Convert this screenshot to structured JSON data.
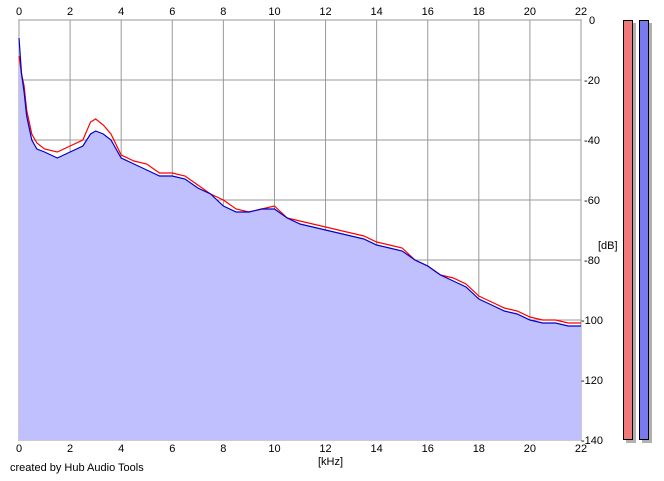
{
  "chart_data": {
    "type": "area",
    "title": "",
    "xlabel": "[kHz]",
    "ylabel": "[dB]",
    "xlim": [
      0,
      22
    ],
    "ylim": [
      -140,
      0
    ],
    "x_ticks": [
      0,
      2,
      4,
      6,
      8,
      10,
      12,
      14,
      16,
      18,
      20,
      22
    ],
    "y_ticks": [
      0,
      -20,
      -40,
      -60,
      -80,
      -100,
      -120,
      -140
    ],
    "y_tick_labels": [
      "0",
      "-20",
      "-40",
      "-60",
      "-80",
      "-100",
      "-120",
      "-140"
    ],
    "grid": true,
    "legend": "none",
    "series": [
      {
        "color": "#ff0000",
        "x": [
          0,
          0.1,
          0.2,
          0.3,
          0.5,
          0.7,
          1.0,
          1.5,
          2.0,
          2.5,
          2.8,
          3.0,
          3.3,
          3.6,
          4.0,
          4.5,
          5.0,
          5.5,
          6.0,
          6.5,
          7.0,
          7.5,
          8.0,
          8.5,
          9.0,
          9.5,
          10.0,
          10.5,
          11.0,
          11.5,
          12.0,
          12.5,
          13.0,
          13.5,
          14.0,
          14.5,
          15.0,
          15.5,
          16.0,
          16.5,
          17.0,
          17.5,
          18.0,
          18.5,
          19.0,
          19.5,
          20.0,
          20.5,
          21.0,
          21.5,
          22.0
        ],
        "y": [
          -12,
          -18,
          -22,
          -30,
          -38,
          -41,
          -43,
          -44,
          -42,
          -40,
          -34,
          -33,
          -35,
          -38,
          -45,
          -47,
          -48,
          -51,
          -51,
          -52,
          -55,
          -58,
          -60,
          -63,
          -64,
          -63,
          -62,
          -66,
          -67,
          -68,
          -69,
          -70,
          -71,
          -72,
          -74,
          -75,
          -76,
          -80,
          -82,
          -85,
          -86,
          -88,
          -92,
          -94,
          -96,
          -97,
          -99,
          -100,
          -100,
          -101,
          -101
        ]
      },
      {
        "color": "#0000cc",
        "x": [
          0,
          0.1,
          0.2,
          0.3,
          0.5,
          0.7,
          1.0,
          1.5,
          2.0,
          2.5,
          2.8,
          3.0,
          3.3,
          3.6,
          4.0,
          4.5,
          5.0,
          5.5,
          6.0,
          6.5,
          7.0,
          7.5,
          8.0,
          8.5,
          9.0,
          9.5,
          10.0,
          10.5,
          11.0,
          11.5,
          12.0,
          12.5,
          13.0,
          13.5,
          14.0,
          14.5,
          15.0,
          15.5,
          16.0,
          16.5,
          17.0,
          17.5,
          18.0,
          18.5,
          19.0,
          19.5,
          20.0,
          20.5,
          21.0,
          21.5,
          22.0
        ],
        "y": [
          -6,
          -18,
          -24,
          -32,
          -40,
          -43,
          -44,
          -46,
          -44,
          -42,
          -38,
          -37,
          -38,
          -40,
          -46,
          -48,
          -50,
          -52,
          -52,
          -53,
          -56,
          -58,
          -62,
          -64,
          -64,
          -63,
          -63,
          -66,
          -68,
          -69,
          -70,
          -71,
          -72,
          -73,
          -75,
          -76,
          -77,
          -80,
          -82,
          -85,
          -87,
          -89,
          -93,
          -95,
          -97,
          -98,
          -100,
          -101,
          -101,
          -102,
          -102
        ]
      }
    ],
    "fill_color": "#c0c0ff",
    "meters": [
      {
        "color": "#f07a7a",
        "level": 1.0
      },
      {
        "color": "#7a7af0",
        "level": 1.0
      }
    ]
  },
  "credit_text": "created by Hub Audio Tools"
}
